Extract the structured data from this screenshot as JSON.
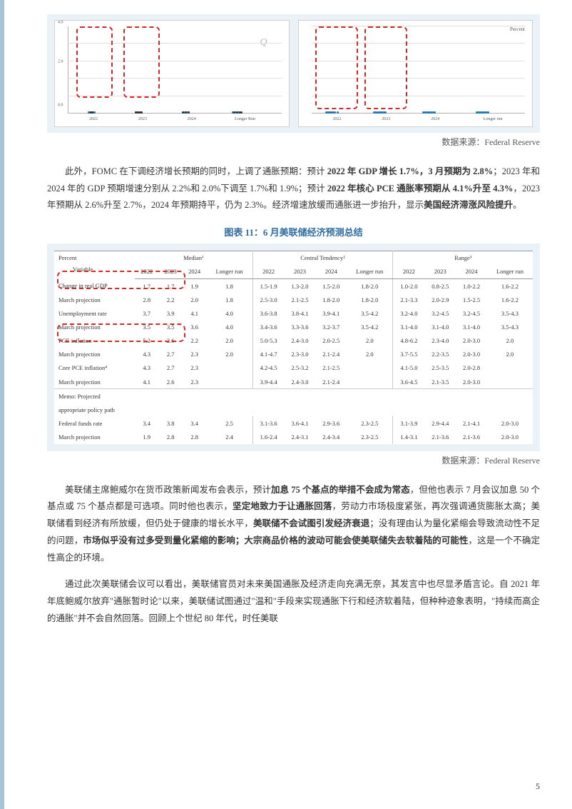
{
  "charts": {
    "left": {
      "type": "dot-plot",
      "background": "#ffffff",
      "ylim": [
        0,
        4.2
      ],
      "yticks": [
        "0.0",
        "0.5",
        "1.0",
        "1.5",
        "2.0",
        "2.5",
        "3.0",
        "3.5",
        "4.0"
      ],
      "categories": [
        "2022",
        "2023",
        "2024",
        "Longer Run"
      ],
      "redbox_cols": [
        0,
        1
      ],
      "q_watermark": "Q"
    },
    "right": {
      "type": "dot-plot",
      "background": "#ffffff",
      "label_left": "Percent",
      "label_right": "Percent",
      "ylim": [
        0,
        4.5
      ],
      "categories": [
        "2022",
        "2023",
        "2024",
        "Longer run"
      ],
      "redbox_cols": [
        0,
        1
      ]
    }
  },
  "source1": "数据来源：Federal Reserve",
  "source2": "数据来源：Federal Reserve",
  "para1_a": "此外，FOMC 在下调经济增长预期的同时，上调了通胀预期：预计 ",
  "para1_b": "2022 年 GDP 增长 1.7%，3 月预期为 2.8%",
  "para1_c": "；2023 年和 2024 年的 GDP 预期增速分别从 2.2%和 2.0%下调至 1.7%和 1.9%；预计 ",
  "para1_d": "2022 年核心 PCE 通胀率预期从 4.1%升至 4.3%",
  "para1_e": "，2023 年预期从 2.6%升至 2.7%，2024 年预期持平，仍为 2.3%。经济增速放缓而通胀进一步抬升，显示",
  "para1_f": "美国经济滞涨风险提升",
  "para1_g": "。",
  "fig11_title": "图表 11：6 月美联储经济预测总结",
  "table": {
    "percent_label": "Percent",
    "col_groups": [
      "Median¹",
      "Central Tendency²",
      "Range³"
    ],
    "year_cols": [
      "2022",
      "2023",
      "2024",
      "Longer run"
    ],
    "rows": [
      {
        "label": "Change in real GDP",
        "m": [
          "1.7",
          "1.7",
          "1.9",
          "1.8"
        ],
        "c": [
          "1.5-1.9",
          "1.3-2.0",
          "1.5-2.0",
          "1.8-2.0"
        ],
        "r": [
          "1.0-2.0",
          "0.8-2.5",
          "1.0-2.2",
          "1.6-2.2"
        ],
        "red": true
      },
      {
        "label": "  March projection",
        "m": [
          "2.8",
          "2.2",
          "2.0",
          "1.8"
        ],
        "c": [
          "2.5-3.0",
          "2.1-2.5",
          "1.8-2.0",
          "1.8-2.0"
        ],
        "r": [
          "2.1-3.3",
          "2.0-2.9",
          "1.5-2.5",
          "1.6-2.2"
        ],
        "red": true
      },
      {
        "label": "Unemployment rate",
        "m": [
          "3.7",
          "3.9",
          "4.1",
          "4.0"
        ],
        "c": [
          "3.6-3.8",
          "3.8-4.1",
          "3.9-4.1",
          "3.5-4.2"
        ],
        "r": [
          "3.2-4.0",
          "3.2-4.5",
          "3.2-4.5",
          "3.5-4.3"
        ]
      },
      {
        "label": "  March projection",
        "m": [
          "3.5",
          "3.5",
          "3.6",
          "4.0"
        ],
        "c": [
          "3.4-3.6",
          "3.3-3.6",
          "3.2-3.7",
          "3.5-4.2"
        ],
        "r": [
          "3.1-4.0",
          "3.1-4.0",
          "3.1-4.0",
          "3.5-4.3"
        ]
      },
      {
        "label": "PCE inflation",
        "m": [
          "5.2",
          "2.6",
          "2.2",
          "2.0"
        ],
        "c": [
          "5.0-5.3",
          "2.4-3.0",
          "2.0-2.5",
          "2.0"
        ],
        "r": [
          "4.8-6.2",
          "2.3-4.0",
          "2.0-3.0",
          "2.0"
        ]
      },
      {
        "label": "  March projection",
        "m": [
          "4.3",
          "2.7",
          "2.3",
          "2.0"
        ],
        "c": [
          "4.1-4.7",
          "2.3-3.0",
          "2.1-2.4",
          "2.0"
        ],
        "r": [
          "3.7-5.5",
          "2.2-3.5",
          "2.0-3.0",
          "2.0"
        ]
      },
      {
        "label": "Core PCE inflation⁴",
        "m": [
          "4.3",
          "2.7",
          "2.3",
          ""
        ],
        "c": [
          "4.2-4.5",
          "2.5-3.2",
          "2.1-2.5",
          ""
        ],
        "r": [
          "4.1-5.0",
          "2.5-3.5",
          "2.0-2.8",
          ""
        ],
        "red": true
      },
      {
        "label": "  March projection",
        "m": [
          "4.1",
          "2.6",
          "2.3",
          ""
        ],
        "c": [
          "3.9-4.4",
          "2.4-3.0",
          "2.1-2.4",
          ""
        ],
        "r": [
          "3.6-4.5",
          "2.1-3.5",
          "2.0-3.0",
          ""
        ],
        "red": true
      },
      {
        "label": "Memo: Projected",
        "memo": true
      },
      {
        "label": "appropriate policy path",
        "memo": true
      },
      {
        "label": "Federal funds rate",
        "m": [
          "3.4",
          "3.8",
          "3.4",
          "2.5"
        ],
        "c": [
          "3.1-3.6",
          "3.6-4.1",
          "2.9-3.6",
          "2.3-2.5"
        ],
        "r": [
          "3.1-3.9",
          "2.9-4.4",
          "2.1-4.1",
          "2.0-3.0"
        ]
      },
      {
        "label": "  March projection",
        "m": [
          "1.9",
          "2.8",
          "2.8",
          "2.4"
        ],
        "c": [
          "1.6-2.4",
          "2.4-3.1",
          "2.4-3.4",
          "2.3-2.5"
        ],
        "r": [
          "1.4-3.1",
          "2.1-3.6",
          "2.1-3.6",
          "2.0-3.0"
        ]
      }
    ]
  },
  "para2_a": "美联储主席鲍威尔在货币政策新闻发布会表示，预计",
  "para2_b": "加息 75 个基点的举措不会成为常态",
  "para2_c": "，但他也表示 7 月会议加息 50 个基点或 75 个基点都是可选项。同时他也表示，",
  "para2_d": "坚定地致力于让通胀回落",
  "para2_e": "，劳动力市场极度紧张，再次强调通货膨胀太高；美联储看到经济有所放缓，但仍处于健康的增长水平，",
  "para2_f": "美联储不会试图引发经济衰退",
  "para2_g": "；没有理由认为量化紧缩会导致流动性不足的问题，",
  "para2_h": "市场似乎没有过多受到量化紧缩的影响；大宗商品价格的波动可能会使美联储失去软着陆的可能性",
  "para2_i": "，这是一个不确定性高企的环境。",
  "para3": "通过此次美联储会议可以看出，美联储官员对未来美国通胀及经济走向充满无奈，其发言中也尽显矛盾言论。自 2021 年年底鲍威尔放弃\"通胀暂时论\"以来，美联储试图通过\"温和\"手段来实现通胀下行和经济软着陆，但种种迹象表明，\"持续而高企的通胀\"并不会自然回落。回顾上个世纪 80 年代，时任美联",
  "page_number": "5"
}
